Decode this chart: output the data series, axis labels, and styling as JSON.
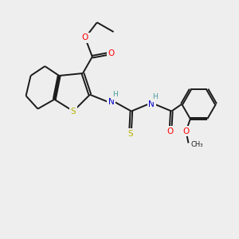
{
  "background_color": "#eeeeee",
  "bond_color": "#1a1a1a",
  "S_color": "#b8b000",
  "O_color": "#ff0000",
  "N_color": "#0000cc",
  "H_color": "#4a9a9a",
  "lw": 1.4,
  "figsize": [
    3.0,
    3.0
  ],
  "dpi": 100,
  "xlim": [
    0,
    10
  ],
  "ylim": [
    0,
    10
  ]
}
